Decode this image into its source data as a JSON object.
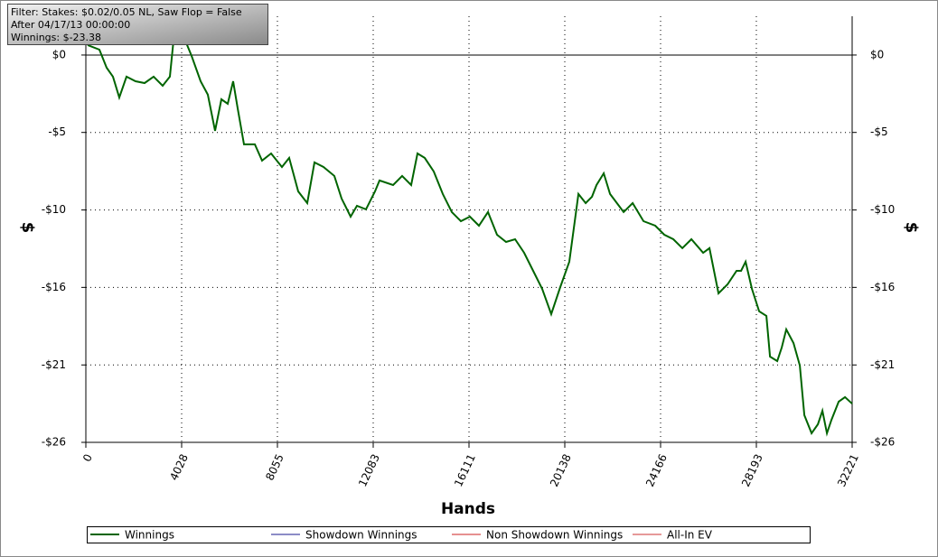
{
  "chart_data": {
    "type": "line",
    "annotation": [
      "Filter: Stakes: $0.02/0.05 NL, Saw Flop = False",
      "After 04/17/13 00:00:00",
      "Winnings: $-23.38"
    ],
    "xlabel": "Hands",
    "ylabel": "$",
    "xlim": [
      0,
      32221
    ],
    "xticks": [
      0,
      4028,
      8055,
      12083,
      16111,
      20138,
      24166,
      28193,
      32221
    ],
    "ylim": [
      -25.97,
      2.6
    ],
    "yticks": [
      {
        "value": 0,
        "label": "$0"
      },
      {
        "value": -5.19,
        "label": "-$5"
      },
      {
        "value": -10.39,
        "label": "-$10"
      },
      {
        "value": -15.58,
        "label": "-$16"
      },
      {
        "value": -20.78,
        "label": "-$21"
      },
      {
        "value": -25.97,
        "label": "-$26"
      }
    ],
    "grid": true,
    "x": [
      76,
      570,
      874,
      1140,
      1406,
      1710,
      2090,
      2470,
      2850,
      3230,
      3534,
      3686,
      3838,
      4180,
      4446,
      4826,
      5130,
      5434,
      5700,
      5966,
      6194,
      6384,
      6650,
      7106,
      7410,
      7790,
      8246,
      8550,
      8930,
      9310,
      9614,
      9994,
      10450,
      10754,
      11134,
      11400,
      11780,
      12160,
      12350,
      12920,
      13300,
      13680,
      13946,
      14250,
      14630,
      15010,
      15390,
      15770,
      16150,
      16530,
      16910,
      17290,
      17670,
      18050,
      18430,
      18810,
      19190,
      19570,
      19950,
      20330,
      20710,
      21014,
      21280,
      21470,
      21774,
      22040,
      22610,
      22990,
      23446,
      23940,
      24320,
      24700,
      25080,
      25460,
      25954,
      26220,
      26600,
      26980,
      27360,
      27550,
      27740,
      28006,
      28310,
      28614,
      28766,
      29070,
      29260,
      29450,
      29754,
      30020,
      30210,
      30514,
      30780,
      30970,
      31160,
      31350,
      31654,
      31920,
      32221
    ],
    "series": [
      {
        "name": "Winnings",
        "color": "#006400",
        "values": [
          0.67,
          0.36,
          -0.85,
          -1.45,
          -2.85,
          -1.45,
          -1.76,
          -1.88,
          -1.45,
          -2.06,
          -1.45,
          0.97,
          1.88,
          0.97,
          -0.06,
          -1.76,
          -2.66,
          -5.08,
          -2.97,
          -3.27,
          -1.76,
          -3.57,
          -5.99,
          -5.99,
          -7.08,
          -6.6,
          -7.51,
          -6.9,
          -9.14,
          -9.93,
          -7.2,
          -7.51,
          -8.11,
          -9.62,
          -10.84,
          -10.11,
          -10.35,
          -9.14,
          -8.41,
          -8.72,
          -8.11,
          -8.72,
          -6.6,
          -6.9,
          -7.81,
          -9.32,
          -10.53,
          -11.14,
          -10.84,
          -11.44,
          -10.53,
          -12.05,
          -12.53,
          -12.35,
          -13.26,
          -14.47,
          -15.68,
          -17.37,
          -15.56,
          -13.86,
          -9.32,
          -9.93,
          -9.5,
          -8.72,
          -7.93,
          -9.32,
          -10.53,
          -9.93,
          -11.14,
          -11.44,
          -12.05,
          -12.35,
          -12.95,
          -12.35,
          -13.26,
          -12.95,
          -15.98,
          -15.38,
          -14.47,
          -14.47,
          -13.86,
          -15.68,
          -17.19,
          -17.49,
          -20.22,
          -20.52,
          -19.61,
          -18.4,
          -19.31,
          -20.82,
          -24.15,
          -25.36,
          -24.76,
          -23.85,
          -25.36,
          -24.46,
          -23.24,
          -22.94,
          -23.38
        ]
      },
      {
        "name": "Showdown Winnings",
        "color": "#1a1a8c"
      },
      {
        "name": "Non Showdown Winnings",
        "color": "#cc2222"
      },
      {
        "name": "All-In EV",
        "color": "#cc3333"
      }
    ]
  }
}
